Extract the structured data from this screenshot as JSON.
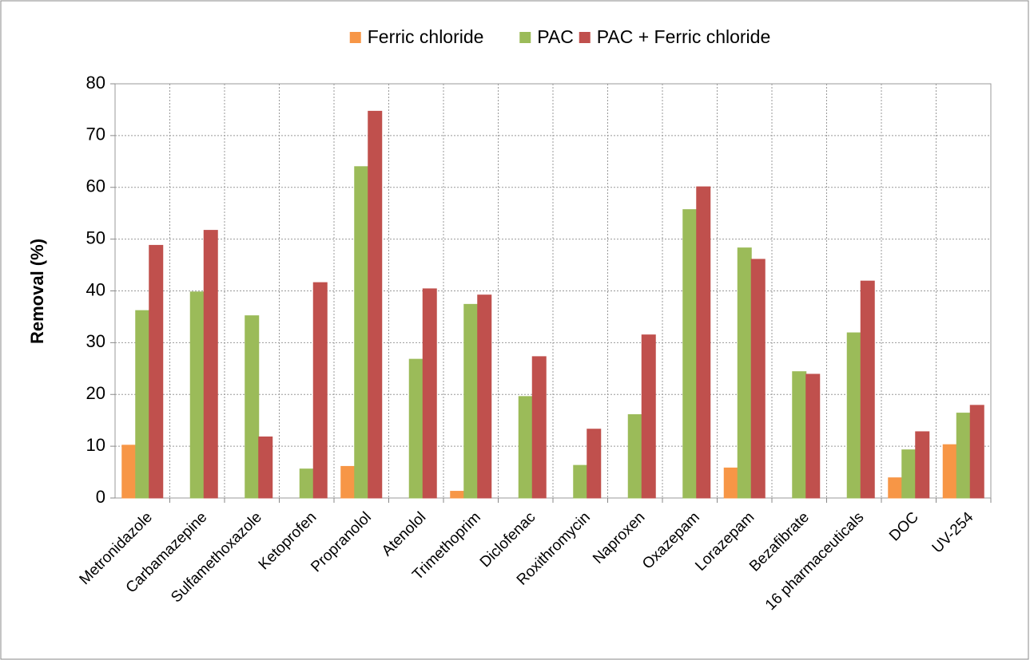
{
  "chart_data": {
    "type": "bar",
    "y_label": "Removal (%)",
    "categories": [
      "Metronidazole",
      "Carbamazepine",
      "Sulfamethoxazole",
      "Ketoprofen",
      "Propranolol",
      "Atenolol",
      "Trimethoprim",
      "Diclofenac",
      "Roxithromycin",
      "Naproxen",
      "Oxazepam",
      "Lorazepam",
      "Bezafibrate",
      "16 pharmaceuticals",
      "DOC",
      "UV-254"
    ],
    "series": [
      {
        "name": "Ferric chloride",
        "color": "#f79646",
        "values": [
          10.2,
          0,
          0,
          0,
          6.1,
          0,
          1.3,
          0,
          0,
          0,
          0,
          5.8,
          0,
          0,
          3.9,
          10.3
        ]
      },
      {
        "name": "PAC",
        "color": "#9bbb59",
        "values": [
          36.2,
          39.8,
          35.2,
          5.6,
          64.0,
          26.8,
          37.4,
          19.6,
          6.3,
          16.1,
          55.7,
          48.3,
          24.4,
          31.9,
          9.3,
          16.4
        ]
      },
      {
        "name": "PAC + Ferric chloride",
        "color": "#c0504d",
        "values": [
          48.8,
          51.7,
          11.8,
          41.6,
          74.7,
          40.4,
          39.2,
          27.3,
          13.3,
          31.5,
          60.1,
          46.1,
          23.9,
          41.9,
          12.8,
          17.9
        ]
      }
    ],
    "ylim": [
      0,
      80
    ],
    "yticks": [
      0,
      10,
      20,
      30,
      40,
      50,
      60,
      70,
      80
    ],
    "grid": true,
    "legend": "top"
  }
}
